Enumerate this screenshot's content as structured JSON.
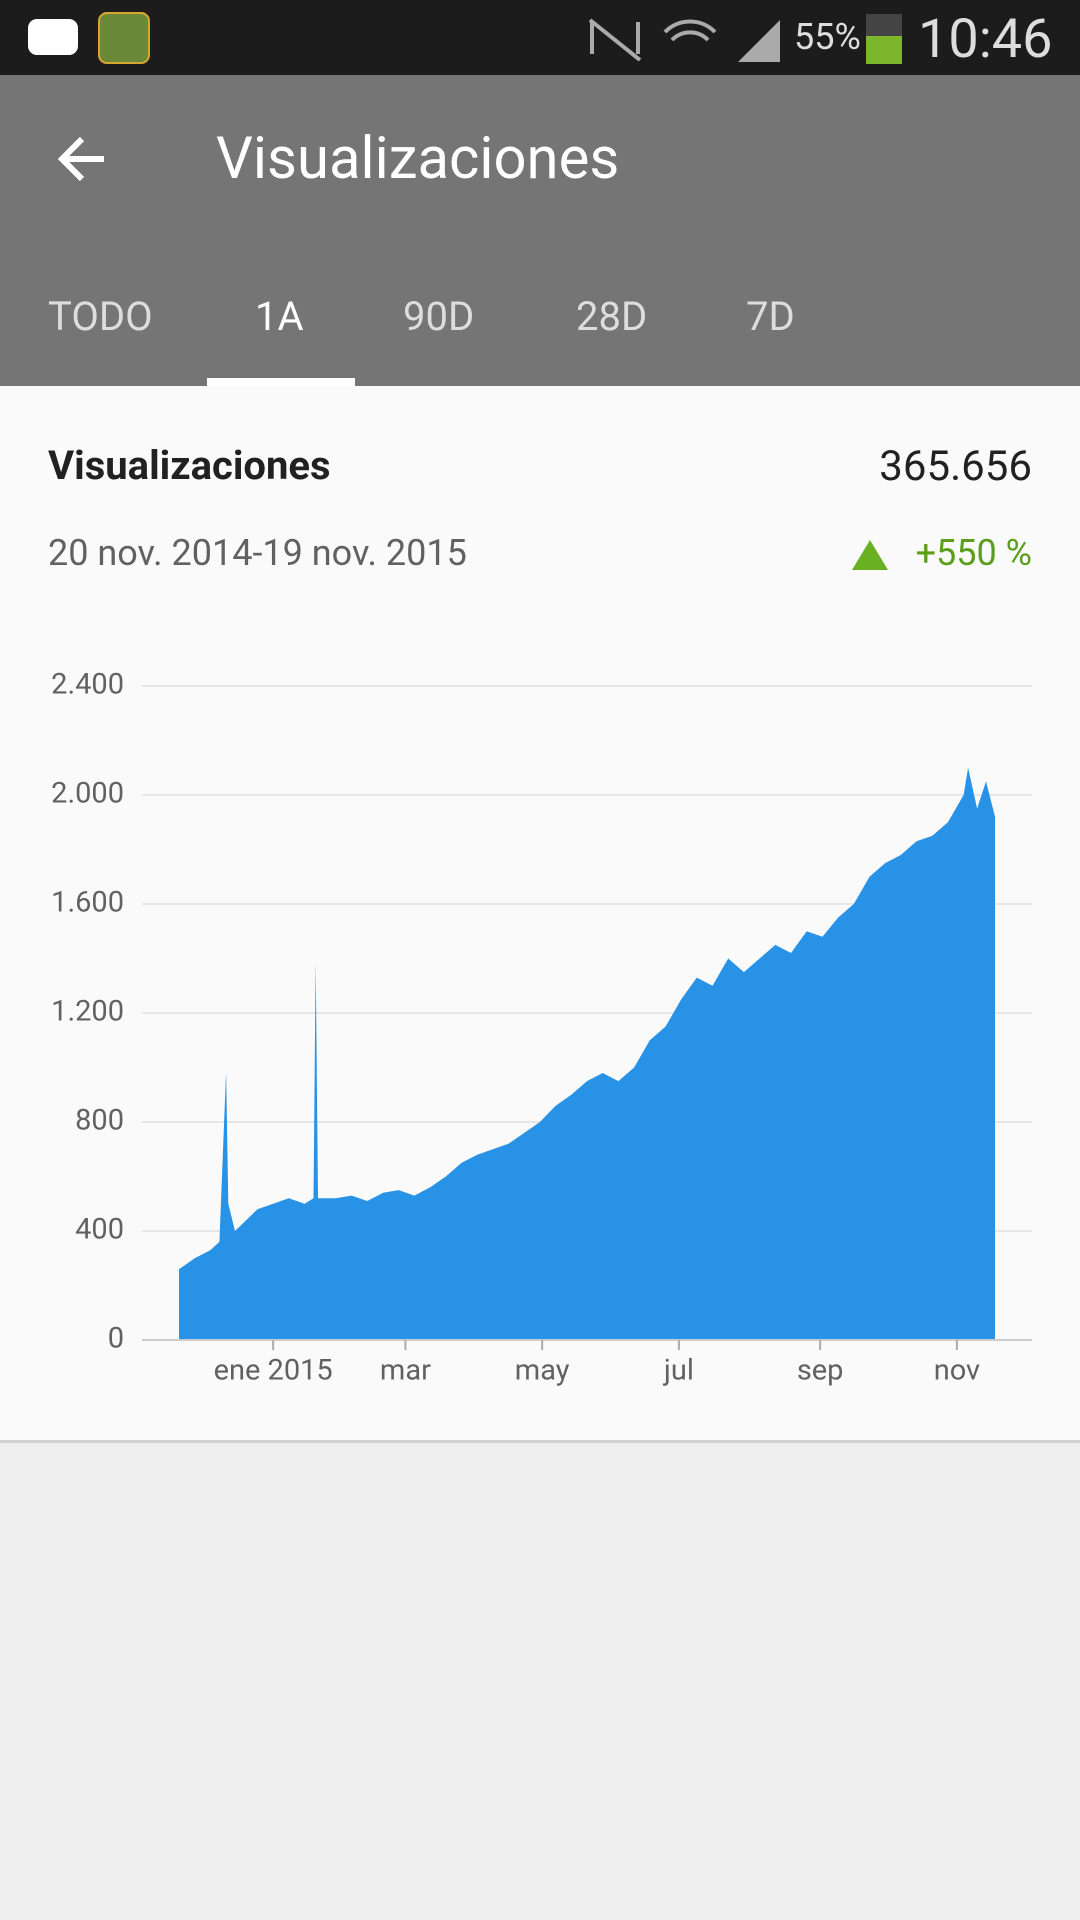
{
  "status_bar": {
    "battery": "55%",
    "time": "10:46"
  },
  "app_bar": {
    "title": "Visualizaciones"
  },
  "tabs": [
    "TODO",
    "1A",
    "90D",
    "28D",
    "7D"
  ],
  "card": {
    "metric": "Visualizaciones",
    "total": "365.656",
    "period": "20 nov. 2014-19 nov. 2015",
    "change": "+550 %"
  },
  "chart_data": {
    "type": "area",
    "color": "#2892e6",
    "grid": true,
    "x": [
      0,
      7,
      14,
      18,
      21,
      22,
      25,
      30,
      35,
      42,
      49,
      56,
      60,
      61,
      62,
      70,
      77,
      84,
      91,
      98,
      105,
      112,
      119,
      126,
      133,
      140,
      147,
      154,
      161,
      168,
      175,
      182,
      189,
      196,
      203,
      210,
      217,
      224,
      231,
      238,
      245,
      252,
      259,
      266,
      273,
      280,
      287,
      294,
      301,
      308,
      315,
      322,
      329,
      336,
      343,
      350,
      352,
      356,
      360,
      364
    ],
    "values": [
      260,
      300,
      330,
      360,
      985,
      500,
      400,
      440,
      480,
      500,
      520,
      500,
      520,
      1390,
      520,
      520,
      530,
      510,
      540,
      550,
      530,
      560,
      600,
      650,
      680,
      700,
      720,
      760,
      800,
      860,
      900,
      950,
      980,
      950,
      1000,
      1100,
      1150,
      1250,
      1330,
      1300,
      1400,
      1350,
      1400,
      1450,
      1420,
      1500,
      1480,
      1550,
      1600,
      1700,
      1750,
      1780,
      1830,
      1850,
      1900,
      2000,
      2100,
      1950,
      2050,
      1920
    ],
    "xlim": [
      0,
      364
    ],
    "xticks": [
      {
        "value": 42,
        "label": "ene 2015"
      },
      {
        "value": 101,
        "label": "mar"
      },
      {
        "value": 162,
        "label": "may"
      },
      {
        "value": 223,
        "label": "jul"
      },
      {
        "value": 286,
        "label": "sep"
      },
      {
        "value": 347,
        "label": "nov"
      }
    ],
    "ylim": [
      0,
      2400
    ],
    "yticks": [
      0,
      400,
      800,
      {
        "value": 1200,
        "label": "1.200"
      },
      {
        "value": 1600,
        "label": "1.600"
      },
      {
        "value": 2000,
        "label": "2.000"
      },
      {
        "value": 2400,
        "label": "2.400"
      }
    ]
  }
}
